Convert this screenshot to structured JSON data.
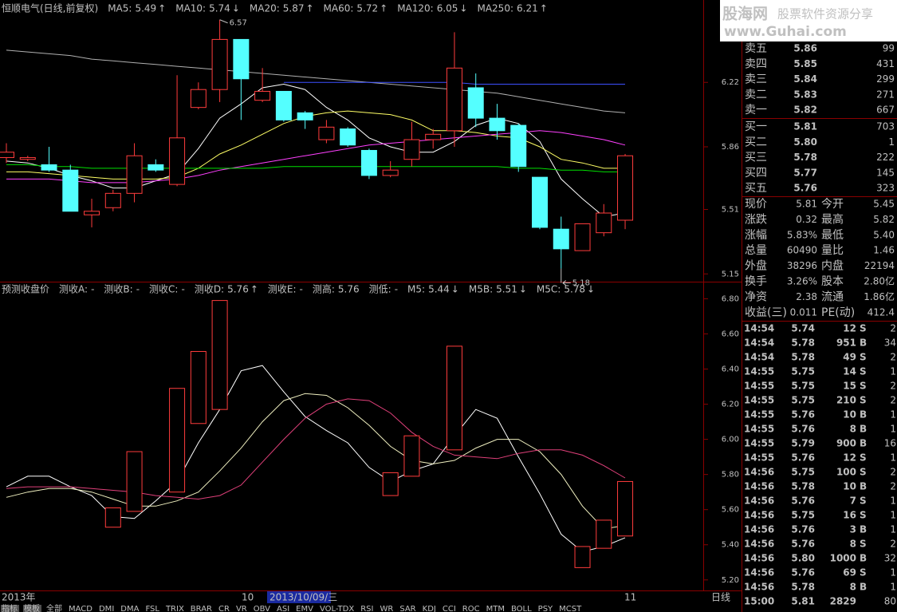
{
  "chart_data": [
    {
      "type": "candlestick",
      "title": "恒顺电气(日线,前复权)",
      "open": [
        5.8,
        5.79,
        5.76,
        5.73,
        5.48,
        5.52,
        5.6,
        5.76,
        5.65,
        6.08,
        6.18,
        6.46,
        6.12,
        6.17,
        6.05,
        5.9,
        5.96,
        5.84,
        5.7,
        5.79,
        5.9,
        5.95,
        6.19,
        6.02,
        5.98,
        5.69,
        5.4,
        5.28,
        5.38,
        5.45
      ],
      "close": [
        5.83,
        5.8,
        5.73,
        5.5,
        5.5,
        5.6,
        5.81,
        5.73,
        5.91,
        6.18,
        6.46,
        6.24,
        6.17,
        6.01,
        6.01,
        5.97,
        5.87,
        5.7,
        5.73,
        5.9,
        5.93,
        6.3,
        6.02,
        5.95,
        5.75,
        5.41,
        5.29,
        5.43,
        5.49,
        5.81
      ],
      "high": [
        5.88,
        5.81,
        5.86,
        5.76,
        5.57,
        5.62,
        5.88,
        5.79,
        6.26,
        6.22,
        6.57,
        6.46,
        6.3,
        6.17,
        6.06,
        6.01,
        5.97,
        5.85,
        5.78,
        6.0,
        5.96,
        6.5,
        6.27,
        6.1,
        5.99,
        5.69,
        5.47,
        5.43,
        5.54,
        5.82
      ],
      "low": [
        5.77,
        5.78,
        5.72,
        5.5,
        5.41,
        5.5,
        5.55,
        5.72,
        5.64,
        6.07,
        6.11,
        6.01,
        6.11,
        6.0,
        5.96,
        5.88,
        5.86,
        5.68,
        5.69,
        5.75,
        5.85,
        5.86,
        5.97,
        5.9,
        5.72,
        5.4,
        5.18,
        5.28,
        5.36,
        5.4
      ],
      "up_color": "#ff3c3c",
      "down_color": "#54ffff",
      "series": [
        {
          "name": "MA5:",
          "last": 5.49,
          "arrow": "↑",
          "color": "#ffffff",
          "values": [
            5.78,
            5.77,
            5.74,
            5.7,
            5.67,
            5.63,
            5.63,
            5.67,
            5.71,
            5.85,
            6.02,
            6.1,
            6.19,
            6.21,
            6.18,
            6.08,
            6.01,
            5.91,
            5.86,
            5.83,
            5.83,
            5.89,
            5.98,
            6.02,
            5.99,
            5.89,
            5.68,
            5.57,
            5.47,
            5.49
          ]
        },
        {
          "name": "MA10:",
          "last": 5.74,
          "arrow": "↓",
          "color": "#ffff66",
          "values": [
            5.72,
            5.72,
            5.71,
            5.7,
            5.69,
            5.68,
            5.68,
            5.68,
            5.69,
            5.74,
            5.82,
            5.87,
            5.93,
            5.99,
            6.03,
            6.05,
            6.06,
            6.05,
            6.04,
            6.01,
            5.95,
            5.95,
            5.94,
            5.92,
            5.91,
            5.86,
            5.79,
            5.77,
            5.74,
            5.74
          ]
        },
        {
          "name": "MA20:",
          "last": 5.87,
          "arrow": "↑",
          "color": "#ff40ff",
          "values": [
            5.68,
            5.68,
            5.68,
            5.67,
            5.66,
            5.66,
            5.66,
            5.67,
            5.68,
            5.7,
            5.73,
            5.75,
            5.77,
            5.79,
            5.81,
            5.83,
            5.85,
            5.87,
            5.88,
            5.89,
            5.9,
            5.91,
            5.92,
            5.93,
            5.94,
            5.95,
            5.94,
            5.92,
            5.9,
            5.87
          ]
        },
        {
          "name": "MA60:",
          "last": 5.72,
          "arrow": "↑",
          "color": "#00e000",
          "values": [
            5.76,
            5.76,
            5.75,
            5.75,
            5.74,
            5.74,
            5.74,
            5.74,
            5.74,
            5.74,
            5.74,
            5.74,
            5.74,
            5.75,
            5.75,
            5.75,
            5.75,
            5.75,
            5.75,
            5.75,
            5.75,
            5.75,
            5.75,
            5.75,
            5.74,
            5.74,
            5.73,
            5.73,
            5.72,
            5.72
          ]
        },
        {
          "name": "MA120:",
          "last": 6.05,
          "arrow": "↓",
          "color": "#b0b0b0",
          "values": [
            6.4,
            6.39,
            6.38,
            6.37,
            6.35,
            6.34,
            6.33,
            6.32,
            6.31,
            6.3,
            6.29,
            6.28,
            6.27,
            6.26,
            6.25,
            6.24,
            6.23,
            6.22,
            6.21,
            6.2,
            6.19,
            6.18,
            6.17,
            6.16,
            6.14,
            6.12,
            6.1,
            6.08,
            6.06,
            6.05
          ]
        },
        {
          "name": "MA250:",
          "last": 6.21,
          "arrow": "↑",
          "color": "#3c50ff",
          "values": [
            null,
            null,
            null,
            null,
            null,
            null,
            null,
            null,
            null,
            null,
            null,
            null,
            null,
            6.22,
            6.22,
            6.22,
            6.22,
            6.22,
            6.22,
            6.22,
            6.22,
            6.22,
            6.21,
            6.21,
            6.21,
            6.21,
            6.21,
            6.21,
            6.21,
            6.21
          ]
        }
      ],
      "ylim": [
        5.12,
        6.6
      ],
      "yticks": [
        6.22,
        5.86,
        5.51,
        5.15
      ]
    },
    {
      "type": "candlestick",
      "title": "预测收盘价",
      "items": [
        {
          "label": "测收A:",
          "value": "-",
          "color": "#ff4040"
        },
        {
          "label": "测收B:",
          "value": "-",
          "color": "#ff4040"
        },
        {
          "label": "测收C:",
          "value": "-",
          "color": "#ff4040"
        },
        {
          "label": "测收D:",
          "value": 5.76,
          "arrow": "↑",
          "color": "#ff4040"
        },
        {
          "label": "测收E:",
          "value": "-",
          "color": "#ff4040"
        },
        {
          "label": "测高:",
          "value": 5.76,
          "color": "#4a5aff"
        },
        {
          "label": "测低:",
          "value": "-",
          "color": "#ffffff"
        }
      ],
      "open": [
        null,
        null,
        null,
        null,
        null,
        5.5,
        5.59,
        null,
        5.7,
        6.09,
        6.17,
        null,
        null,
        null,
        null,
        null,
        null,
        null,
        5.68,
        5.79,
        null,
        5.94,
        null,
        null,
        null,
        null,
        null,
        5.27,
        5.38,
        5.45
      ],
      "close": [
        null,
        null,
        null,
        null,
        null,
        5.61,
        5.93,
        null,
        6.29,
        6.5,
        6.79,
        null,
        null,
        null,
        null,
        null,
        null,
        null,
        5.81,
        6.02,
        null,
        6.53,
        null,
        null,
        null,
        null,
        null,
        5.39,
        5.54,
        5.76
      ],
      "up_color": "#ff3c3c",
      "down_color": "#54ffff",
      "series": [
        {
          "name": "M5:",
          "last": 5.44,
          "arrow": "↓",
          "color": "#ffffff",
          "values": [
            5.73,
            5.79,
            5.79,
            5.73,
            5.68,
            5.56,
            5.55,
            5.65,
            5.76,
            5.98,
            6.17,
            6.39,
            6.42,
            6.27,
            6.13,
            6.05,
            5.98,
            5.84,
            5.76,
            5.82,
            5.86,
            6.02,
            6.17,
            6.12,
            5.9,
            5.69,
            5.46,
            5.36,
            5.39,
            5.44
          ]
        },
        {
          "name": "M5B:",
          "last": 5.51,
          "arrow": "↓",
          "color": "#f0f0c0",
          "values": [
            5.67,
            5.7,
            5.72,
            5.72,
            5.7,
            5.66,
            5.62,
            5.62,
            5.65,
            5.7,
            5.82,
            5.95,
            6.1,
            6.22,
            6.26,
            6.25,
            6.18,
            6.08,
            5.96,
            5.88,
            5.86,
            5.88,
            5.95,
            6.0,
            6.0,
            5.93,
            5.8,
            5.62,
            5.49,
            5.51
          ]
        },
        {
          "name": "M5C:",
          "last": 5.78,
          "arrow": "↓",
          "color": "#e0407a",
          "values": [
            5.72,
            5.73,
            5.73,
            5.73,
            5.72,
            5.71,
            5.7,
            5.68,
            5.67,
            5.66,
            5.68,
            5.74,
            5.87,
            6.0,
            6.12,
            6.2,
            6.23,
            6.22,
            6.15,
            6.04,
            5.96,
            5.91,
            5.9,
            5.89,
            5.92,
            5.94,
            5.94,
            5.91,
            5.85,
            5.78
          ]
        }
      ],
      "ylim": [
        5.14,
        6.82
      ],
      "yticks": [
        {
          "value": 6.8,
          "label": "6.80"
        },
        {
          "value": 6.6,
          "label": "6.60"
        },
        {
          "value": 6.4,
          "label": "6.40"
        },
        {
          "value": 6.2,
          "label": "6.20"
        },
        {
          "value": 6,
          "label": "6.00"
        },
        {
          "value": 5.8,
          "label": "5.80"
        },
        {
          "value": 5.6,
          "label": "5.60"
        },
        {
          "value": 5.4,
          "label": "5.40"
        },
        {
          "value": 5.2,
          "label": "5.20"
        }
      ]
    }
  ],
  "x_axis": {
    "start": "2013年",
    "month1": "10",
    "cursor_date": "2013/10/09/三",
    "month2": "11"
  },
  "period": "日线",
  "tabs": [
    "指标",
    "模板",
    "全部",
    "MACD",
    "DMI",
    "DMA",
    "FSL",
    "TRIX",
    "BRAR",
    "CR",
    "VR",
    "OBV",
    "ASI",
    "EMV",
    "VOL-TDX",
    "RSI",
    "WR",
    "SAR",
    "KDJ",
    "CCI",
    "ROC",
    "MTM",
    "BOLL",
    "PSY",
    "MCST"
  ],
  "logo": {
    "name": "股海网",
    "slogan": "股票软件资源分享",
    "url": "www.Guhai.com"
  },
  "order_book": {
    "asks": [
      {
        "label": "卖五",
        "price": 5.86,
        "volume": 99
      },
      {
        "label": "卖四",
        "price": 5.85,
        "volume": 431
      },
      {
        "label": "卖三",
        "price": 5.84,
        "volume": 299
      },
      {
        "label": "卖二",
        "price": 5.83,
        "volume": 271
      },
      {
        "label": "卖一",
        "price": 5.82,
        "volume": 667
      }
    ],
    "bids": [
      {
        "label": "买一",
        "price": 5.81,
        "volume": 703
      },
      {
        "label": "买二",
        "price": "5.80",
        "volume": 1
      },
      {
        "label": "买三",
        "price": 5.78,
        "volume": 222
      },
      {
        "label": "买四",
        "price": 5.77,
        "volume": 145
      },
      {
        "label": "买五",
        "price": 5.76,
        "volume": 323
      }
    ]
  },
  "quote": [
    {
      "cells": [
        "现价",
        5.81,
        "今开",
        5.45
      ],
      "colors": [
        "#c0c0c0",
        "#ff5050",
        "#c0c0c0",
        "#30ff30"
      ]
    },
    {
      "cells": [
        "涨跌",
        0.32,
        "最高",
        5.82
      ],
      "colors": [
        "#c0c0c0",
        "#ff5050",
        "#c0c0c0",
        "#ff5050"
      ]
    },
    {
      "cells": [
        "涨幅",
        "5.83%",
        "最低",
        "5.40"
      ],
      "colors": [
        "#c0c0c0",
        "#ff5050",
        "#c0c0c0",
        "#30ff30"
      ]
    },
    {
      "cells": [
        "总量",
        60490,
        "量比",
        1.46
      ],
      "colors": [
        "#c0c0c0",
        "#ffff40",
        "#c0c0c0",
        "#ff5050"
      ]
    },
    {
      "cells": [
        "外盘",
        38296,
        "内盘",
        22194
      ],
      "colors": [
        "#c0c0c0",
        "#ff5050",
        "#c0c0c0",
        "#30ff30"
      ]
    },
    {
      "cells": [
        "换手",
        "3.26%",
        "股本",
        "2.80亿"
      ],
      "colors": [
        "#c0c0c0",
        "#ffffff",
        "#c0c0c0",
        "#ffffff"
      ]
    },
    {
      "cells": [
        "净资",
        2.38,
        "流通",
        "1.86亿"
      ],
      "colors": [
        "#c0c0c0",
        "#ffffff",
        "#c0c0c0",
        "#ffffff"
      ]
    },
    {
      "cells": [
        "收益(三)",
        0.011,
        "PE(动)",
        412.4
      ],
      "colors": [
        "#c0c0c0",
        "#ffffff",
        "#c0c0c0",
        "#ffffff"
      ]
    }
  ],
  "trades": [
    {
      "time": "14:54",
      "price": 5.74,
      "volume": 12,
      "side": "S",
      "count": 2
    },
    {
      "time": "14:54",
      "price": 5.78,
      "volume": 951,
      "side": "B",
      "count": 34,
      "volume_color": "#ff44ff"
    },
    {
      "time": "14:54",
      "price": 5.78,
      "volume": 49,
      "side": "S",
      "count": 2
    },
    {
      "time": "14:55",
      "price": 5.75,
      "volume": 14,
      "side": "S",
      "count": 1
    },
    {
      "time": "14:55",
      "price": 5.75,
      "volume": 15,
      "side": "S",
      "count": 2
    },
    {
      "time": "14:55",
      "price": 5.75,
      "volume": 210,
      "side": "S",
      "count": 2
    },
    {
      "time": "14:55",
      "price": 5.76,
      "volume": 10,
      "side": "B",
      "count": 1
    },
    {
      "time": "14:55",
      "price": 5.76,
      "volume": 8,
      "side": "B",
      "count": 1
    },
    {
      "time": "14:55",
      "price": 5.79,
      "volume": 900,
      "side": "B",
      "count": 16,
      "volume_color": "#ff44ff"
    },
    {
      "time": "14:55",
      "price": 5.76,
      "volume": 12,
      "side": "S",
      "count": 1
    },
    {
      "time": "14:56",
      "price": 5.75,
      "volume": 100,
      "side": "S",
      "count": 2
    },
    {
      "time": "14:56",
      "price": 5.78,
      "volume": 10,
      "side": "B",
      "count": 2
    },
    {
      "time": "14:56",
      "price": 5.76,
      "volume": 7,
      "side": "S",
      "count": 1
    },
    {
      "time": "14:56",
      "price": 5.75,
      "volume": 16,
      "side": "S",
      "count": 1
    },
    {
      "time": "14:56",
      "price": 5.76,
      "volume": 3,
      "side": "B",
      "count": 1
    },
    {
      "time": "14:56",
      "price": 5.76,
      "volume": 8,
      "side": "S",
      "count": 2
    },
    {
      "time": "14:56",
      "price": "5.80",
      "volume": 1000,
      "side": "B",
      "count": 32,
      "volume_color": "#ff44ff"
    },
    {
      "time": "14:56",
      "price": 5.76,
      "volume": 69,
      "side": "S",
      "count": 1
    },
    {
      "time": "14:56",
      "price": 5.78,
      "volume": 8,
      "side": "B",
      "count": 1
    },
    {
      "time": "15:00",
      "price": 5.81,
      "volume": 2829,
      "count": 80,
      "volume_color": "#ff44ff"
    }
  ]
}
